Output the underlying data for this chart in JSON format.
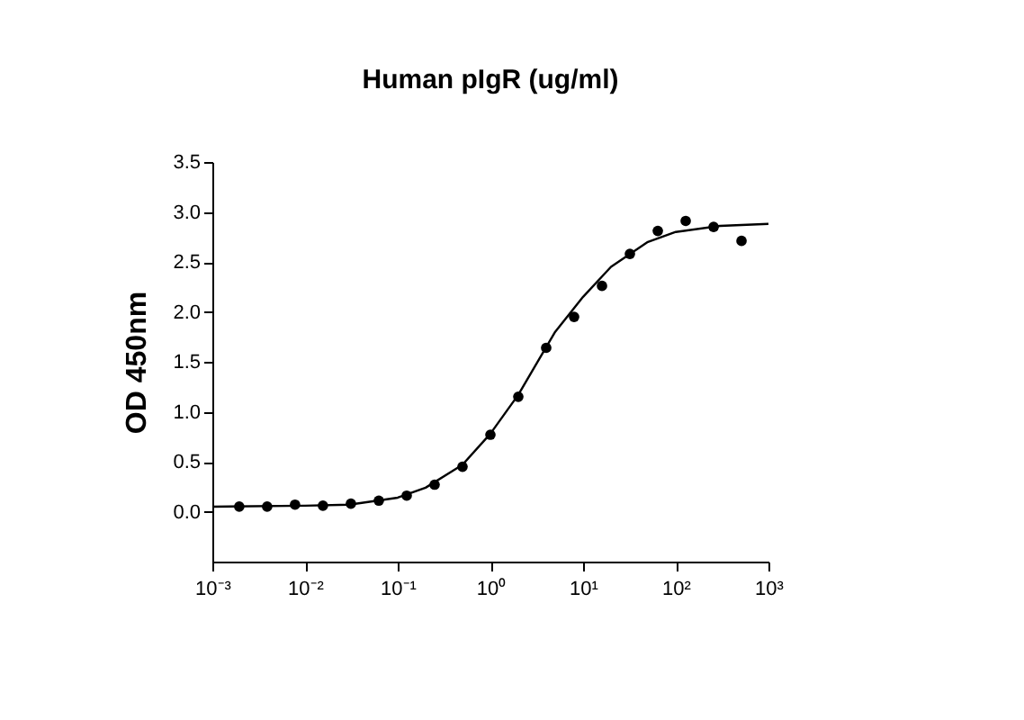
{
  "chart_data": {
    "type": "scatter",
    "title": "Human pIgR (ug/ml)",
    "ylabel": "OD 450nm",
    "log": "x",
    "xlim": [
      0.001,
      1000
    ],
    "xticks": [
      {
        "value": 0.001,
        "label": "10⁻³"
      },
      {
        "value": 0.01,
        "label": "10⁻²"
      },
      {
        "value": 0.1,
        "label": "10⁻¹"
      },
      {
        "value": 1,
        "label": "10⁰"
      },
      {
        "value": 10,
        "label": "10¹"
      },
      {
        "value": 100,
        "label": "10²"
      },
      {
        "value": 1000,
        "label": "10³"
      }
    ],
    "ylim": [
      -0.5,
      3.5
    ],
    "yticks": [
      {
        "value": 0,
        "label": "0.0"
      },
      {
        "value": 0.5,
        "label": "0.5"
      },
      {
        "value": 1,
        "label": "1.0"
      },
      {
        "value": 1.5,
        "label": "1.5"
      },
      {
        "value": 2,
        "label": "2.0"
      },
      {
        "value": 2.5,
        "label": "2.5"
      },
      {
        "value": 3,
        "label": "3.0"
      },
      {
        "value": 3.5,
        "label": "3.5"
      }
    ],
    "grid": false,
    "series": [
      {
        "type": "line",
        "color": "#000000",
        "marker": "none",
        "line_style": "solid",
        "x": [
          0.001,
          0.01,
          0.03,
          0.1,
          0.2,
          0.5,
          1,
          2,
          3,
          5,
          10,
          20,
          50,
          100,
          300,
          1000
        ],
        "values": [
          0.05,
          0.06,
          0.07,
          0.14,
          0.24,
          0.47,
          0.78,
          1.17,
          1.45,
          1.8,
          2.15,
          2.45,
          2.7,
          2.8,
          2.86,
          2.88
        ]
      },
      {
        "type": "scatter",
        "color": "#000000",
        "marker": "circle",
        "x": [
          0.00195,
          0.0039,
          0.0078,
          0.0156,
          0.03125,
          0.0625,
          0.125,
          0.25,
          0.5,
          1,
          2,
          4,
          8,
          16,
          32,
          64,
          128,
          256,
          512
        ],
        "values": [
          0.05,
          0.05,
          0.07,
          0.06,
          0.08,
          0.11,
          0.16,
          0.27,
          0.45,
          0.77,
          1.15,
          1.64,
          1.95,
          2.26,
          2.58,
          2.81,
          2.91,
          2.85,
          2.71
        ]
      }
    ]
  }
}
